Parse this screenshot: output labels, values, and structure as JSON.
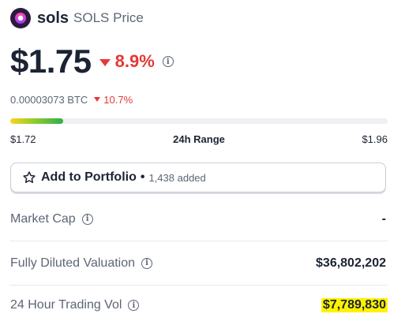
{
  "header": {
    "coin_name": "sols",
    "coin_subtitle": "SOLS Price"
  },
  "price": {
    "value": "$1.75",
    "change_24h": "8.9%",
    "direction": "down",
    "down_color": "#e53935"
  },
  "btc": {
    "value": "0.00003073 BTC",
    "change": "10.7%"
  },
  "range": {
    "low": "$1.72",
    "label": "24h Range",
    "high": "$1.96",
    "fill_fraction": 0.14
  },
  "portfolio": {
    "label": "Add to Portfolio",
    "separator": "•",
    "count_text": "1,438 added"
  },
  "stats": [
    {
      "label": "Market Cap",
      "value": "-",
      "highlighted": false
    },
    {
      "label": "Fully Diluted Valuation",
      "value": "$36,802,202",
      "highlighted": false
    },
    {
      "label": "24 Hour Trading Vol",
      "value": "$7,789,830",
      "highlighted": true
    }
  ],
  "icons": {
    "coin_logo": "sols-logo-icon",
    "info": "info-icon",
    "star": "star-icon",
    "down_arrow": "caret-down-icon"
  },
  "colors": {
    "highlight": "#fff200",
    "text_primary": "#1c2433",
    "text_secondary": "#5d6675"
  }
}
